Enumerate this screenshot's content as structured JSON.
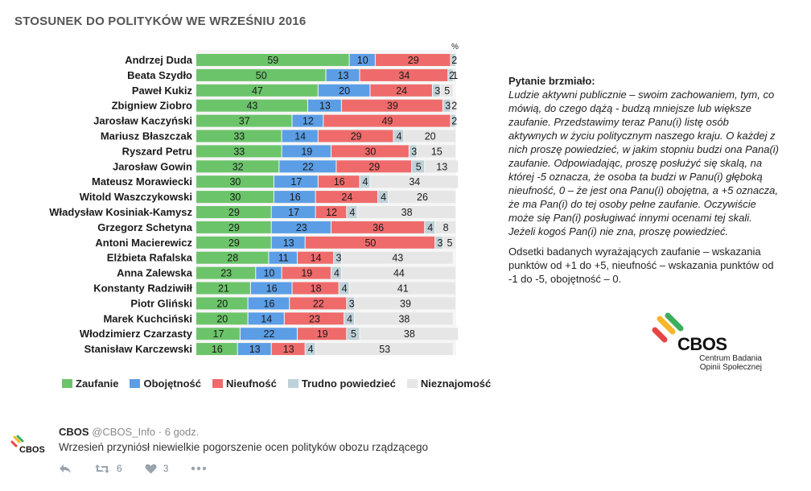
{
  "title": "STOSUNEK DO POLITYKÓW  WE WRZEŚNIU 2016",
  "chart_data": {
    "type": "bar",
    "orientation": "horizontal",
    "stacked": true,
    "unit_label": "%",
    "xlim": [
      0,
      100
    ],
    "categories": [
      "Andrzej Duda",
      "Beata Szydło",
      "Paweł Kukiz",
      "Zbigniew Ziobro",
      "Jarosław Kaczyński",
      "Mariusz Błaszczak",
      "Ryszard Petru",
      "Jarosław Gowin",
      "Mateusz Morawiecki",
      "Witold Waszczykowski",
      "Władysław Kosiniak-Kamysz",
      "Grzegorz Schetyna",
      "Antoni Macierewicz",
      "Elżbieta Rafalska",
      "Anna Zalewska",
      "Konstanty Radziwiłł",
      "Piotr Gliński",
      "Marek Kuchciński",
      "Włodzimierz Czarzasty",
      "Stanisław Karczewski"
    ],
    "series": [
      {
        "name": "Zaufanie",
        "color": "#6cc46a",
        "values": [
          59,
          50,
          47,
          43,
          37,
          33,
          33,
          32,
          30,
          30,
          29,
          29,
          29,
          28,
          23,
          21,
          20,
          20,
          17,
          16
        ]
      },
      {
        "name": "Obojętność",
        "color": "#5b9ee6",
        "values": [
          10,
          13,
          20,
          13,
          12,
          14,
          19,
          22,
          17,
          16,
          17,
          23,
          13,
          11,
          10,
          16,
          16,
          14,
          22,
          13
        ]
      },
      {
        "name": "Nieufność",
        "color": "#ef6b6b",
        "values": [
          29,
          34,
          24,
          39,
          49,
          29,
          30,
          29,
          16,
          24,
          12,
          36,
          50,
          14,
          19,
          18,
          22,
          23,
          19,
          13
        ]
      },
      {
        "name": "Trudno powiedzieć",
        "color": "#bfd1d8",
        "values": [
          2,
          2,
          3,
          3,
          2,
          4,
          3,
          5,
          4,
          4,
          4,
          4,
          3,
          3,
          4,
          4,
          3,
          4,
          5,
          4
        ]
      },
      {
        "name": "Nieznajomość",
        "color": "#e6e6e6",
        "values": [
          0,
          1,
          5,
          2,
          0,
          20,
          15,
          13,
          34,
          26,
          38,
          8,
          5,
          43,
          44,
          41,
          39,
          38,
          38,
          53
        ]
      }
    ],
    "legend_position": "bottom"
  },
  "question": {
    "title": "Pytanie brzmiało:",
    "body": "Ludzie aktywni publicznie – swoim zachowaniem, tym, co mówią, do czego dążą - budzą mniejsze lub większe zaufanie. Przedstawimy teraz Panu(i) listę osób aktywnych w życiu politycznym naszego kraju. O każdej z nich proszę powiedzieć, w jakim stopniu budzi ona Pana(i) zaufanie. Odpowiadając, proszę posłużyć się skalą, na której -5 oznacza, że osoba ta budzi w Panu(i) głęboką nieufność, 0 – że jest ona Panu(i) obojętna, a +5 oznacza, że ma Pan(i) do tej osoby pełne zaufanie. Oczywiście może się Pan(i) posługiwać innymi ocenami tej skali. Jeżeli kogoś Pan(i) nie zna, proszę powiedzieć.",
    "note": "Odsetki badanych wyrażających zaufanie – wskazania punktów od +1 do +5, nieufność – wskazania punktów od -1 do -5, obojętność – 0."
  },
  "logo": {
    "text": "CBOS",
    "subtitle_line1": "Centrum Badania",
    "subtitle_line2": "Opinii Społecznej"
  },
  "tweet": {
    "name": "CBOS",
    "handle": "@CBOS_Info",
    "separator": "·",
    "time": "6 godz.",
    "text": "Wrzesień przyniósł niewielkie pogorszenie ocen polityków obozu rządzącego",
    "avatar_text": "CBOS",
    "retweets": "6",
    "likes": "3",
    "icons": {
      "reply": "reply-icon",
      "retweet": "retweet-icon",
      "like": "heart-icon",
      "more": "more-icon"
    }
  }
}
